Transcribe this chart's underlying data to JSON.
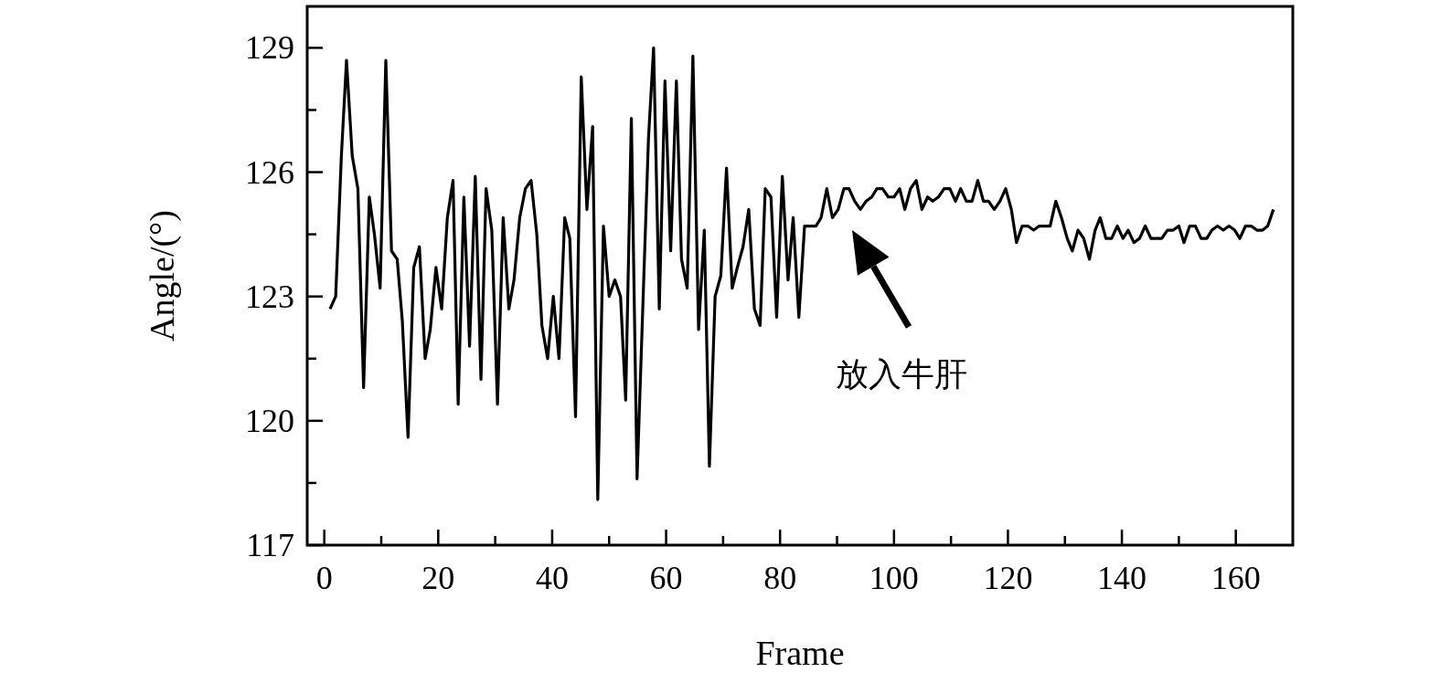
{
  "chart_data": {
    "type": "line",
    "xlabel": "Frame",
    "ylabel": "Angle/(°)",
    "xlim": [
      -3,
      170
    ],
    "ylim": [
      117,
      130
    ],
    "xticks": [
      0,
      {
        "value": 10,
        "label": null
      },
      20,
      {
        "value": 30,
        "label": null
      },
      40,
      {
        "value": 50,
        "label": null
      },
      60,
      {
        "value": 70,
        "label": null
      },
      80,
      {
        "value": 90,
        "label": null
      },
      100,
      {
        "value": 110,
        "label": null
      },
      120,
      {
        "value": 130,
        "label": null
      },
      140,
      {
        "value": 150,
        "label": null
      },
      160
    ],
    "yticks": [
      117,
      {
        "value": 118.5,
        "label": null
      },
      120,
      {
        "value": 121.5,
        "label": null
      },
      123,
      {
        "value": 124.5,
        "label": null
      },
      126,
      {
        "value": 127.5,
        "label": null
      },
      129
    ],
    "grid": false,
    "marker": "none",
    "line_style": "solid",
    "annotations": [
      "放入牛肝"
    ],
    "x": [
      1,
      2,
      3,
      3.9,
      4.9,
      5.9,
      6.9,
      7.9,
      8.8,
      9.8,
      10.8,
      11.8,
      12.8,
      13.7,
      14.7,
      15.7,
      16.7,
      17.7,
      18.6,
      19.6,
      20.6,
      21.6,
      22.6,
      23.5,
      24.5,
      25.5,
      26.5,
      27.5,
      28.4,
      29.4,
      30.4,
      31.4,
      32.4,
      33.3,
      34.3,
      35.3,
      36.3,
      37.3,
      38.2,
      39.2,
      40.2,
      41.2,
      42.2,
      43.1,
      44.1,
      45.1,
      46.1,
      47.1,
      48,
      49,
      50,
      51,
      52,
      52.9,
      53.9,
      54.9,
      55.9,
      56.9,
      57.8,
      58.8,
      59.8,
      60.8,
      61.8,
      62.7,
      63.7,
      64.7,
      65.7,
      66.7,
      67.6,
      68.6,
      69.6,
      70.6,
      71.6,
      72.5,
      73.5,
      74.5,
      75.5,
      76.5,
      77.4,
      78.4,
      79.4,
      80.4,
      81.4,
      82.3,
      83.3,
      84.3,
      85.3,
      86.3,
      87.2,
      88.2,
      89.2,
      90.2,
      91.2,
      92.1,
      93.1,
      94.1,
      95.1,
      96.1,
      97,
      98,
      99,
      100,
      101,
      101.9,
      102.9,
      103.9,
      104.9,
      105.9,
      106.8,
      107.8,
      108.8,
      109.8,
      110.8,
      111.7,
      112.7,
      113.7,
      114.7,
      115.7,
      116.6,
      117.6,
      118.6,
      119.6,
      120.6,
      121.5,
      122.5,
      123.5,
      124.5,
      125.5,
      126.4,
      127.4,
      128.4,
      129.4,
      130.4,
      131.3,
      132.3,
      133.3,
      134.3,
      135.3,
      136.2,
      137.2,
      138.2,
      139.2,
      140.2,
      141.1,
      142.1,
      143.1,
      144.1,
      145.1,
      146,
      147,
      148,
      149,
      150,
      150.9,
      151.9,
      152.9,
      153.9,
      154.9,
      155.8,
      156.8,
      157.8,
      158.8,
      159.8,
      160.7,
      161.7,
      162.7,
      163.7,
      164.7,
      165.6,
      166.6
    ],
    "series": [
      {
        "color": "#000000",
        "values": [
          122.7,
          123.0,
          126.4,
          128.7,
          126.4,
          125.6,
          120.8,
          125.4,
          124.5,
          123.2,
          128.7,
          124.1,
          123.9,
          122.4,
          119.6,
          123.7,
          124.2,
          121.5,
          122.2,
          123.7,
          122.7,
          124.9,
          125.8,
          120.4,
          125.4,
          121.8,
          125.9,
          121.0,
          125.6,
          124.6,
          120.4,
          124.9,
          122.7,
          123.4,
          124.9,
          125.6,
          125.8,
          124.5,
          122.3,
          121.5,
          123.0,
          121.5,
          124.9,
          124.4,
          120.1,
          128.3,
          125.1,
          127.1,
          118.1,
          124.7,
          123.0,
          123.4,
          123.0,
          120.5,
          127.3,
          118.6,
          122.7,
          126.8,
          129.0,
          122.7,
          128.2,
          124.1,
          128.2,
          123.9,
          123.2,
          128.8,
          122.2,
          124.6,
          118.9,
          123.0,
          123.5,
          126.1,
          123.2,
          123.7,
          124.2,
          125.1,
          122.7,
          122.3,
          125.6,
          125.4,
          122.5,
          125.9,
          123.4,
          124.9,
          122.5,
          124.7,
          124.7,
          124.7,
          124.9,
          125.6,
          124.9,
          125.1,
          125.6,
          125.6,
          125.3,
          125.1,
          125.3,
          125.4,
          125.6,
          125.6,
          125.4,
          125.4,
          125.6,
          125.1,
          125.6,
          125.8,
          125.1,
          125.4,
          125.3,
          125.4,
          125.6,
          125.6,
          125.3,
          125.6,
          125.3,
          125.3,
          125.8,
          125.3,
          125.3,
          125.1,
          125.3,
          125.6,
          125.1,
          124.3,
          124.7,
          124.7,
          124.6,
          124.7,
          124.7,
          124.7,
          125.3,
          124.9,
          124.4,
          124.1,
          124.6,
          124.4,
          123.9,
          124.6,
          124.9,
          124.4,
          124.4,
          124.7,
          124.4,
          124.6,
          124.3,
          124.4,
          124.7,
          124.4,
          124.4,
          124.4,
          124.6,
          124.6,
          124.7,
          124.3,
          124.7,
          124.7,
          124.4,
          124.4,
          124.6,
          124.7,
          124.6,
          124.7,
          124.6,
          124.4,
          124.7,
          124.7,
          124.6,
          124.6,
          124.7,
          125.1
        ]
      }
    ]
  }
}
